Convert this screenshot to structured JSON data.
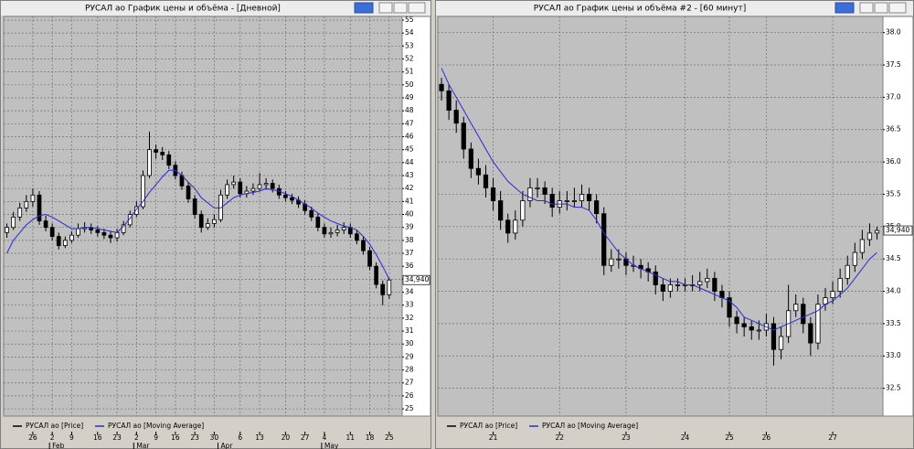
{
  "chart_data": [
    {
      "type": "candlestick",
      "title": "РУСАЛ ао График цены и объёма - [Дневной]",
      "xlim": [
        -0.5,
        61
      ],
      "ylim": [
        24.44,
        55.28
      ],
      "yticks": [
        25,
        26,
        27,
        28,
        29,
        30,
        31,
        32,
        33,
        34,
        35,
        36,
        37,
        38,
        39,
        40,
        41,
        42,
        43,
        44,
        45,
        46,
        47,
        48,
        49,
        50,
        51,
        52,
        53,
        54,
        55
      ],
      "xticks": [
        {
          "value": 4,
          "label": "26"
        },
        {
          "value": 7,
          "label": "2"
        },
        {
          "value": 10,
          "label": "9"
        },
        {
          "value": 14,
          "label": "16"
        },
        {
          "value": 17,
          "label": "23"
        },
        {
          "value": 20,
          "label": "2"
        },
        {
          "value": 23,
          "label": "9"
        },
        {
          "value": 26,
          "label": "16"
        },
        {
          "value": 29,
          "label": "23"
        },
        {
          "value": 32,
          "label": "30"
        },
        {
          "value": 36,
          "label": "6"
        },
        {
          "value": 39,
          "label": "13"
        },
        {
          "value": 43,
          "label": "20"
        },
        {
          "value": 46,
          "label": "27"
        },
        {
          "value": 49,
          "label": "4"
        },
        {
          "value": 53,
          "label": "11"
        },
        {
          "value": 56,
          "label": "18"
        },
        {
          "value": 59,
          "label": "25"
        }
      ],
      "months": [
        {
          "value": 7,
          "label": "Feb"
        },
        {
          "value": 20,
          "label": "Mar"
        },
        {
          "value": 33,
          "label": "Apr"
        },
        {
          "value": 49,
          "label": "May"
        }
      ],
      "last_price": {
        "value": 34.94,
        "label": "34,940"
      },
      "grid": true,
      "series": [
        {
          "name": "РУСАЛ ао [Price]",
          "color": "#000000",
          "ohlc": [
            [
              38.6,
              39.3,
              38.2,
              39.0
            ],
            [
              39.0,
              40.2,
              38.8,
              39.8
            ],
            [
              39.8,
              40.9,
              39.5,
              40.5
            ],
            [
              40.5,
              41.5,
              40.2,
              41.0
            ],
            [
              41.0,
              42.0,
              40.6,
              41.5
            ],
            [
              41.5,
              41.8,
              39.2,
              39.5
            ],
            [
              39.5,
              39.9,
              38.7,
              39.0
            ],
            [
              39.0,
              39.3,
              38.0,
              38.3
            ],
            [
              38.3,
              38.6,
              37.3,
              37.6
            ],
            [
              37.6,
              38.3,
              37.4,
              38.0
            ],
            [
              38.0,
              38.7,
              37.8,
              38.4
            ],
            [
              38.4,
              39.3,
              38.2,
              38.9
            ],
            [
              38.9,
              39.4,
              38.6,
              39.0
            ],
            [
              39.0,
              39.3,
              38.5,
              38.8
            ],
            [
              38.8,
              39.1,
              38.3,
              38.6
            ],
            [
              38.6,
              38.9,
              38.1,
              38.4
            ],
            [
              38.4,
              38.7,
              37.8,
              38.2
            ],
            [
              38.2,
              38.9,
              37.9,
              38.6
            ],
            [
              38.6,
              39.5,
              38.4,
              39.2
            ],
            [
              39.2,
              40.3,
              39.0,
              40.0
            ],
            [
              40.0,
              41.0,
              39.8,
              40.6
            ],
            [
              40.6,
              43.4,
              40.4,
              43.0
            ],
            [
              43.0,
              46.4,
              42.8,
              45.0
            ],
            [
              45.0,
              45.4,
              44.3,
              44.8
            ],
            [
              44.8,
              45.2,
              44.2,
              44.6
            ],
            [
              44.6,
              44.9,
              43.5,
              43.8
            ],
            [
              43.8,
              44.1,
              42.7,
              43.0
            ],
            [
              43.0,
              43.3,
              41.9,
              42.2
            ],
            [
              42.2,
              42.5,
              40.9,
              41.2
            ],
            [
              41.2,
              41.5,
              39.7,
              40.0
            ],
            [
              40.0,
              40.3,
              38.6,
              39.0
            ],
            [
              39.0,
              39.7,
              38.8,
              39.3
            ],
            [
              39.3,
              40.0,
              39.0,
              39.6
            ],
            [
              39.6,
              41.9,
              39.4,
              41.5
            ],
            [
              41.5,
              42.7,
              41.2,
              42.3
            ],
            [
              42.3,
              43.0,
              42.0,
              42.5
            ],
            [
              42.5,
              42.8,
              41.3,
              41.6
            ],
            [
              41.6,
              42.2,
              41.3,
              41.8
            ],
            [
              41.8,
              42.4,
              41.5,
              42.0
            ],
            [
              42.0,
              43.2,
              41.8,
              42.3
            ],
            [
              42.3,
              42.8,
              41.9,
              42.4
            ],
            [
              42.4,
              42.7,
              41.7,
              42.0
            ],
            [
              42.0,
              42.3,
              41.2,
              41.5
            ],
            [
              41.5,
              41.8,
              41.0,
              41.3
            ],
            [
              41.3,
              41.6,
              40.8,
              41.1
            ],
            [
              41.1,
              41.4,
              40.5,
              40.8
            ],
            [
              40.8,
              41.1,
              40.0,
              40.3
            ],
            [
              40.3,
              40.6,
              39.5,
              39.8
            ],
            [
              39.8,
              40.1,
              38.7,
              39.0
            ],
            [
              39.0,
              39.3,
              38.2,
              38.5
            ],
            [
              38.5,
              39.0,
              38.2,
              38.6
            ],
            [
              38.6,
              39.2,
              38.3,
              38.8
            ],
            [
              38.8,
              39.4,
              38.5,
              39.0
            ],
            [
              39.0,
              39.3,
              38.2,
              38.5
            ],
            [
              38.5,
              38.8,
              37.7,
              38.0
            ],
            [
              38.0,
              38.3,
              36.9,
              37.2
            ],
            [
              37.2,
              37.5,
              35.7,
              36.0
            ],
            [
              36.0,
              36.3,
              34.3,
              34.6
            ],
            [
              34.6,
              34.9,
              33.0,
              33.8
            ],
            [
              33.8,
              35.1,
              33.5,
              34.94
            ]
          ]
        },
        {
          "name": "РУСАЛ ао [Moving Average]",
          "color": "#2a2ad8",
          "values": [
            37.0,
            38.0,
            38.6,
            39.2,
            39.6,
            39.9,
            40.0,
            39.8,
            39.5,
            39.2,
            38.9,
            38.9,
            39.0,
            39.0,
            38.9,
            38.8,
            38.7,
            38.6,
            39.1,
            39.7,
            40.4,
            41.0,
            41.7,
            42.3,
            42.9,
            43.4,
            43.4,
            43.0,
            42.5,
            42.0,
            41.3,
            40.9,
            40.5,
            40.5,
            40.9,
            41.3,
            41.5,
            41.6,
            41.7,
            41.8,
            42.0,
            41.9,
            41.8,
            41.6,
            41.4,
            41.1,
            40.8,
            40.5,
            40.1,
            39.8,
            39.5,
            39.3,
            39.1,
            39.0,
            38.8,
            38.3,
            37.7,
            36.9,
            36.0,
            35.0
          ]
        }
      ]
    },
    {
      "type": "candlestick",
      "title": "РУСАЛ ао График цены и объёма #2 - [60 минут]",
      "xlim": [
        -0.5,
        59.8
      ],
      "ylim": [
        32.07,
        38.25
      ],
      "yticks": [
        32.5,
        {
          "value": 33,
          "label": "33.0"
        },
        33.5,
        {
          "value": 34,
          "label": "34.0"
        },
        34.5,
        {
          "value": 35,
          "label": "35.0"
        },
        35.5,
        {
          "value": 36,
          "label": "36.0"
        },
        36.5,
        {
          "value": 37,
          "label": "37.0"
        },
        37.5,
        {
          "value": 38,
          "label": "38.0"
        }
      ],
      "xticks": [
        {
          "value": 7,
          "label": "21"
        },
        {
          "value": 16,
          "label": "22"
        },
        {
          "value": 25,
          "label": "23"
        },
        {
          "value": 33,
          "label": "24"
        },
        {
          "value": 39,
          "label": "25"
        },
        {
          "value": 44,
          "label": "26"
        },
        {
          "value": 53,
          "label": "27"
        }
      ],
      "last_price": {
        "value": 34.94,
        "label": "34,940"
      },
      "grid": true,
      "series": [
        {
          "name": "РУСАЛ ао [Price]",
          "color": "#000000",
          "ohlc": [
            [
              37.2,
              37.3,
              36.95,
              37.1
            ],
            [
              37.1,
              37.2,
              36.65,
              36.8
            ],
            [
              36.8,
              36.95,
              36.45,
              36.6
            ],
            [
              36.6,
              36.7,
              36.05,
              36.2
            ],
            [
              36.2,
              36.3,
              35.75,
              35.9
            ],
            [
              35.9,
              36.05,
              35.65,
              35.8
            ],
            [
              35.8,
              35.95,
              35.45,
              35.6
            ],
            [
              35.6,
              35.75,
              35.25,
              35.4
            ],
            [
              35.4,
              35.55,
              34.95,
              35.1
            ],
            [
              35.1,
              35.2,
              34.75,
              34.9
            ],
            [
              34.9,
              35.25,
              34.8,
              35.1
            ],
            [
              35.1,
              35.55,
              35.0,
              35.4
            ],
            [
              35.4,
              35.75,
              35.3,
              35.6
            ],
            [
              35.6,
              35.75,
              35.45,
              35.6
            ],
            [
              35.6,
              35.7,
              35.35,
              35.5
            ],
            [
              35.5,
              35.6,
              35.15,
              35.3
            ],
            [
              35.3,
              35.55,
              35.2,
              35.4
            ],
            [
              35.4,
              35.55,
              35.25,
              35.4
            ],
            [
              35.4,
              35.6,
              35.3,
              35.4
            ],
            [
              35.4,
              35.65,
              35.3,
              35.5
            ],
            [
              35.5,
              35.6,
              35.25,
              35.4
            ],
            [
              35.4,
              35.5,
              35.05,
              35.2
            ],
            [
              35.2,
              35.3,
              34.25,
              34.4
            ],
            [
              34.4,
              34.65,
              34.3,
              34.5
            ],
            [
              34.5,
              34.65,
              34.35,
              34.5
            ],
            [
              34.5,
              34.6,
              34.25,
              34.4
            ],
            [
              34.4,
              34.55,
              34.3,
              34.4
            ],
            [
              34.4,
              34.5,
              34.2,
              34.35
            ],
            [
              34.35,
              34.45,
              34.15,
              34.3
            ],
            [
              34.3,
              34.4,
              33.95,
              34.1
            ],
            [
              34.1,
              34.2,
              33.85,
              34.0
            ],
            [
              34.0,
              34.2,
              33.9,
              34.1
            ],
            [
              34.1,
              34.2,
              34.0,
              34.1
            ],
            [
              34.1,
              34.2,
              34.0,
              34.1
            ],
            [
              34.1,
              34.25,
              34.0,
              34.1
            ],
            [
              34.1,
              34.3,
              34.0,
              34.15
            ],
            [
              34.15,
              34.35,
              34.05,
              34.2
            ],
            [
              34.2,
              34.3,
              33.85,
              34.0
            ],
            [
              34.0,
              34.1,
              33.75,
              33.9
            ],
            [
              33.9,
              34.0,
              33.45,
              33.6
            ],
            [
              33.6,
              33.7,
              33.35,
              33.5
            ],
            [
              33.5,
              33.6,
              33.3,
              33.45
            ],
            [
              33.45,
              33.55,
              33.25,
              33.4
            ],
            [
              33.4,
              33.55,
              33.25,
              33.4
            ],
            [
              33.4,
              33.65,
              33.3,
              33.5
            ],
            [
              33.5,
              33.6,
              32.85,
              33.1
            ],
            [
              33.1,
              33.45,
              32.95,
              33.3
            ],
            [
              33.3,
              34.1,
              33.2,
              33.7
            ],
            [
              33.7,
              33.95,
              33.6,
              33.8
            ],
            [
              33.8,
              33.9,
              33.35,
              33.5
            ],
            [
              33.5,
              33.6,
              33.0,
              33.2
            ],
            [
              33.2,
              33.95,
              33.1,
              33.8
            ],
            [
              33.8,
              34.05,
              33.7,
              33.9
            ],
            [
              33.9,
              34.15,
              33.8,
              34.0
            ],
            [
              34.0,
              34.35,
              33.9,
              34.2
            ],
            [
              34.2,
              34.55,
              34.1,
              34.4
            ],
            [
              34.4,
              34.75,
              34.3,
              34.6
            ],
            [
              34.6,
              34.95,
              34.5,
              34.8
            ],
            [
              34.8,
              35.05,
              34.7,
              34.9
            ],
            [
              34.9,
              35.0,
              34.8,
              34.94
            ]
          ]
        },
        {
          "name": "РУСАЛ ао [Moving Average]",
          "color": "#2a2ad8",
          "values": [
            37.45,
            37.2,
            37.0,
            36.8,
            36.6,
            36.4,
            36.2,
            36.0,
            35.85,
            35.7,
            35.6,
            35.5,
            35.45,
            35.4,
            35.4,
            35.35,
            35.35,
            35.35,
            35.3,
            35.3,
            35.25,
            35.1,
            34.9,
            34.75,
            34.6,
            34.5,
            34.4,
            34.35,
            34.3,
            34.25,
            34.2,
            34.15,
            34.15,
            34.1,
            34.1,
            34.05,
            34.0,
            33.95,
            33.9,
            33.85,
            33.75,
            33.6,
            33.55,
            33.5,
            33.45,
            33.4,
            33.45,
            33.5,
            33.55,
            33.6,
            33.65,
            33.7,
            33.8,
            33.85,
            33.95,
            34.05,
            34.2,
            34.35,
            34.5,
            34.6
          ]
        }
      ]
    }
  ]
}
